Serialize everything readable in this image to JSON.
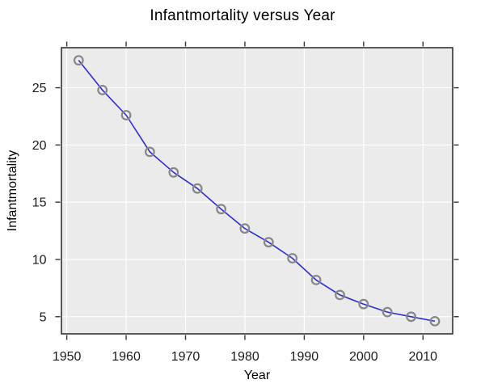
{
  "chart_data": {
    "type": "line",
    "title": "Infantmortality versus Year",
    "xlabel": "Year",
    "ylabel": "Infantmortality",
    "x": [
      1952,
      1956,
      1960,
      1964,
      1968,
      1972,
      1976,
      1980,
      1984,
      1988,
      1992,
      1996,
      2000,
      2004,
      2008,
      2012
    ],
    "series": [
      {
        "name": "Infantmortality",
        "values": [
          27.4,
          24.8,
          22.6,
          19.4,
          17.6,
          16.2,
          14.4,
          12.7,
          11.5,
          10.1,
          8.2,
          6.9,
          6.1,
          5.4,
          5.0,
          4.6
        ]
      }
    ],
    "x_ticks": [
      1950,
      1960,
      1970,
      1980,
      1990,
      2000,
      2010
    ],
    "y_ticks": [
      5,
      10,
      15,
      20,
      25
    ],
    "xlim": [
      1949.1,
      2015.0
    ],
    "ylim": [
      3.5,
      28.5
    ],
    "grid": true,
    "legend_position": "none",
    "marker": "open-circle",
    "line_style": "solid",
    "colors": {
      "line": "#2C2CD8",
      "marker": "#878787",
      "plot_background": "#EBEBEB",
      "gridline": "#FFFFFF",
      "axis": "#333333",
      "tick_text": "#1A1A1A",
      "label_text": "#000000"
    }
  }
}
